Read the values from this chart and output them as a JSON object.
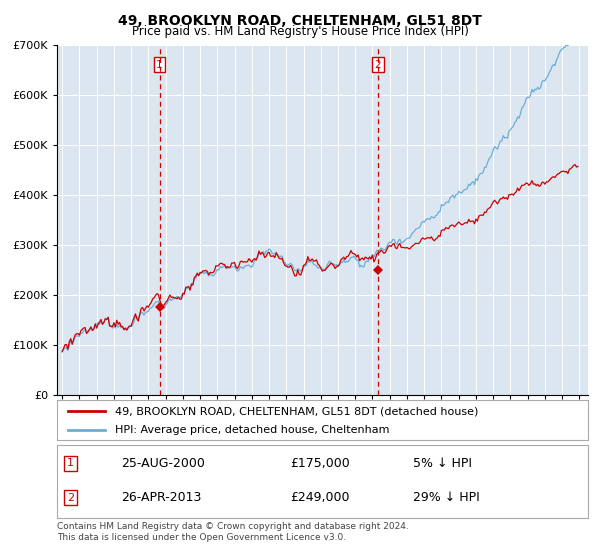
{
  "title": "49, BROOKLYN ROAD, CHELTENHAM, GL51 8DT",
  "subtitle": "Price paid vs. HM Land Registry's House Price Index (HPI)",
  "legend_line1": "49, BROOKLYN ROAD, CHELTENHAM, GL51 8DT (detached house)",
  "legend_line2": "HPI: Average price, detached house, Cheltenham",
  "sale1_date": "25-AUG-2000",
  "sale1_price": 175000,
  "sale1_label": "5% ↓ HPI",
  "sale2_date": "26-APR-2013",
  "sale2_price": 249000,
  "sale2_label": "29% ↓ HPI",
  "sale1_x": 2000.646,
  "sale2_x": 2013.32,
  "footer1": "Contains HM Land Registry data © Crown copyright and database right 2024.",
  "footer2": "This data is licensed under the Open Government Licence v3.0.",
  "hpi_color": "#6baed6",
  "price_color": "#cc0000",
  "bg_color": "#dce6f1",
  "ylim": [
    0,
    700000
  ],
  "xlim_start": 1994.7,
  "xlim_end": 2025.5
}
